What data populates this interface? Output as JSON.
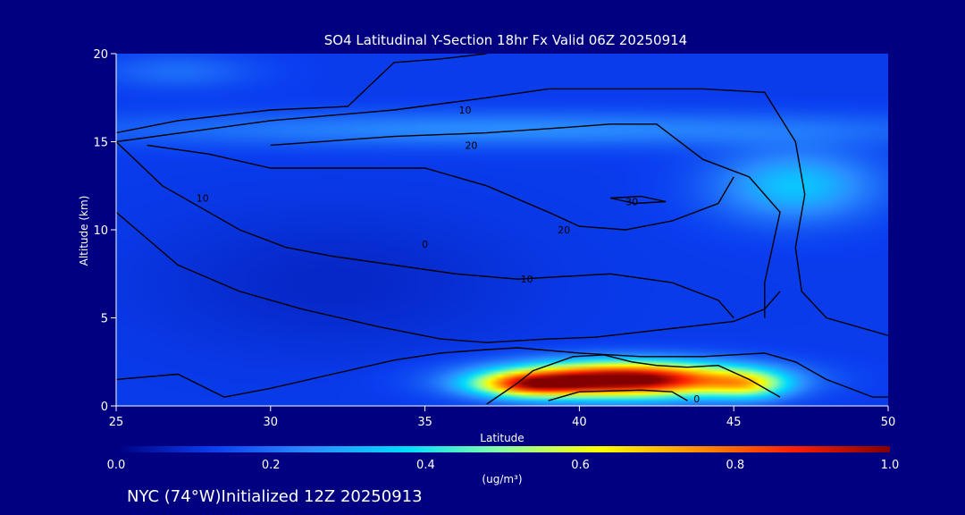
{
  "chart_data": {
    "type": "heatmap",
    "title": "SO4 Latitudinal Y-Section 18hr  Fx Valid 06Z 20250914",
    "xlabel": "Latitude",
    "ylabel": "Altitude (km)",
    "xlim": [
      25,
      50
    ],
    "ylim": [
      0,
      20
    ],
    "x_ticks": [
      25,
      30,
      35,
      40,
      45,
      50
    ],
    "y_ticks": [
      0,
      5,
      10,
      15,
      20
    ],
    "colorbar": {
      "ticks": [
        0.0,
        0.2,
        0.4,
        0.6,
        0.8,
        1.0
      ],
      "tick_labels": [
        "0.0",
        "0.2",
        "0.4",
        "0.6",
        "0.8",
        "1.0"
      ],
      "units": "(ug/m³)",
      "colormap": [
        "#000080",
        "#0a3ef0",
        "#2a8cff",
        "#00dcff",
        "#8cffa0",
        "#ffff00",
        "#ff9000",
        "#ff1e00",
        "#820000"
      ]
    },
    "background_value": 0.12,
    "blobs": [
      {
        "cx": 41.5,
        "cy": 1.5,
        "sx": 3.8,
        "sy": 1.0,
        "amp": 0.95
      },
      {
        "cx": 38.3,
        "cy": 1.2,
        "sx": 1.8,
        "sy": 0.7,
        "amp": 0.45
      },
      {
        "cx": 45.5,
        "cy": 1.2,
        "sx": 1.3,
        "sy": 0.8,
        "amp": 0.3
      },
      {
        "cx": 38.0,
        "cy": 15.7,
        "sx": 14.0,
        "sy": 1.0,
        "amp": 0.13
      },
      {
        "cx": 47.0,
        "cy": 12.5,
        "sx": 2.6,
        "sy": 2.0,
        "amp": 0.22
      },
      {
        "cx": 27.0,
        "cy": 19.0,
        "sx": 2.5,
        "sy": 1.0,
        "amp": 0.08
      },
      {
        "cx": 32.0,
        "cy": 7.0,
        "sx": 6.0,
        "sy": 4.0,
        "amp": -0.04
      }
    ],
    "contours": [
      {
        "label": "0",
        "label_at": [
          35.0,
          9.2
        ],
        "points": [
          [
            25.0,
            15.5
          ],
          [
            27.0,
            16.2
          ],
          [
            30.0,
            16.8
          ],
          [
            32.5,
            17.0
          ],
          [
            34.0,
            19.5
          ],
          [
            35.5,
            19.7
          ],
          [
            37.0,
            20.0
          ]
        ]
      },
      {
        "label": "10",
        "label_at": [
          36.3,
          16.8
        ],
        "points": [
          [
            25.0,
            15.0
          ],
          [
            30.0,
            16.2
          ],
          [
            34.0,
            16.8
          ],
          [
            37.0,
            17.5
          ],
          [
            39.0,
            18.0
          ],
          [
            42.0,
            18.0
          ],
          [
            44.0,
            18.0
          ],
          [
            46.0,
            17.8
          ],
          [
            47.0,
            15.0
          ],
          [
            47.3,
            12.0
          ],
          [
            47.0,
            9.0
          ],
          [
            47.2,
            6.5
          ],
          [
            48.0,
            5.0
          ],
          [
            50.0,
            4.0
          ]
        ]
      },
      {
        "label": "20",
        "label_at": [
          36.5,
          14.8
        ],
        "points": [
          [
            30.0,
            14.8
          ],
          [
            34.0,
            15.3
          ],
          [
            37.0,
            15.5
          ],
          [
            39.5,
            15.8
          ],
          [
            41.0,
            16.0
          ],
          [
            42.5,
            16.0
          ],
          [
            44.0,
            14.0
          ],
          [
            45.5,
            13.0
          ],
          [
            46.5,
            11.0
          ],
          [
            46.0,
            7.0
          ],
          [
            46.0,
            5.0
          ]
        ]
      },
      {
        "label": "30",
        "label_at": [
          41.7,
          11.6
        ],
        "points": [
          [
            41.0,
            11.8
          ],
          [
            42.0,
            11.9
          ],
          [
            42.8,
            11.6
          ],
          [
            41.8,
            11.5
          ],
          [
            41.0,
            11.8
          ]
        ]
      },
      {
        "label": "20",
        "label_at": [
          39.5,
          10.0
        ],
        "points": [
          [
            26.0,
            14.8
          ],
          [
            28.0,
            14.3
          ],
          [
            30.0,
            13.5
          ],
          [
            33.0,
            13.5
          ],
          [
            35.0,
            13.5
          ],
          [
            37.0,
            12.5
          ],
          [
            39.0,
            11.0
          ],
          [
            40.0,
            10.2
          ],
          [
            41.5,
            10.0
          ],
          [
            43.0,
            10.5
          ],
          [
            44.5,
            11.5
          ],
          [
            45.0,
            13.0
          ]
        ]
      },
      {
        "label": "10",
        "label_at": [
          27.8,
          11.8
        ],
        "points": [
          [
            25.0,
            15.0
          ],
          [
            26.5,
            12.5
          ],
          [
            28.0,
            11.0
          ],
          [
            29.0,
            10.0
          ],
          [
            30.5,
            9.0
          ],
          [
            32.0,
            8.5
          ],
          [
            34.0,
            8.0
          ],
          [
            36.0,
            7.5
          ],
          [
            38.0,
            7.2
          ],
          [
            41.0,
            7.5
          ],
          [
            43.0,
            7.0
          ],
          [
            44.5,
            6.0
          ],
          [
            45.0,
            5.0
          ]
        ]
      },
      {
        "label": "10",
        "label_at": [
          38.3,
          7.2
        ],
        "points": [
          [
            25.0,
            11.0
          ],
          [
            26.0,
            9.5
          ],
          [
            27.0,
            8.0
          ],
          [
            29.0,
            6.5
          ],
          [
            31.0,
            5.5
          ],
          [
            33.5,
            4.5
          ],
          [
            35.5,
            3.8
          ],
          [
            37.0,
            3.6
          ],
          [
            39.0,
            3.8
          ],
          [
            40.5,
            3.9
          ],
          [
            42.0,
            4.2
          ],
          [
            43.5,
            4.5
          ],
          [
            45.0,
            4.8
          ],
          [
            46.0,
            5.5
          ],
          [
            46.5,
            6.5
          ]
        ]
      },
      {
        "label": "0",
        "label_at": [
          43.8,
          0.4
        ],
        "points": [
          [
            25.0,
            1.5
          ],
          [
            27.0,
            1.8
          ],
          [
            28.5,
            0.5
          ],
          [
            30.0,
            1.0
          ],
          [
            32.0,
            1.8
          ],
          [
            34.0,
            2.6
          ],
          [
            35.5,
            3.0
          ],
          [
            37.0,
            3.2
          ],
          [
            38.0,
            3.3
          ],
          [
            40.0,
            3.0
          ],
          [
            42.0,
            2.8
          ],
          [
            44.0,
            2.8
          ],
          [
            46.0,
            3.0
          ],
          [
            47.0,
            2.5
          ],
          [
            48.0,
            1.5
          ],
          [
            49.5,
            0.5
          ],
          [
            50.0,
            0.5
          ]
        ]
      },
      {
        "label": "",
        "label_at": null,
        "points": [
          [
            39.0,
            0.3
          ],
          [
            40.0,
            0.8
          ],
          [
            42.0,
            0.9
          ],
          [
            43.0,
            0.8
          ],
          [
            43.5,
            0.3
          ]
        ]
      },
      {
        "label": "",
        "label_at": null,
        "points": [
          [
            37.0,
            0.1
          ],
          [
            38.0,
            1.3
          ],
          [
            38.5,
            2.0
          ],
          [
            39.8,
            2.8
          ],
          [
            40.8,
            2.9
          ],
          [
            41.7,
            2.5
          ],
          [
            42.5,
            2.3
          ],
          [
            43.5,
            2.2
          ],
          [
            44.5,
            2.3
          ],
          [
            45.5,
            1.5
          ],
          [
            46.5,
            0.5
          ]
        ]
      }
    ]
  },
  "footer": {
    "station": "NYC (74°W)Initialized 12Z 20250913"
  }
}
